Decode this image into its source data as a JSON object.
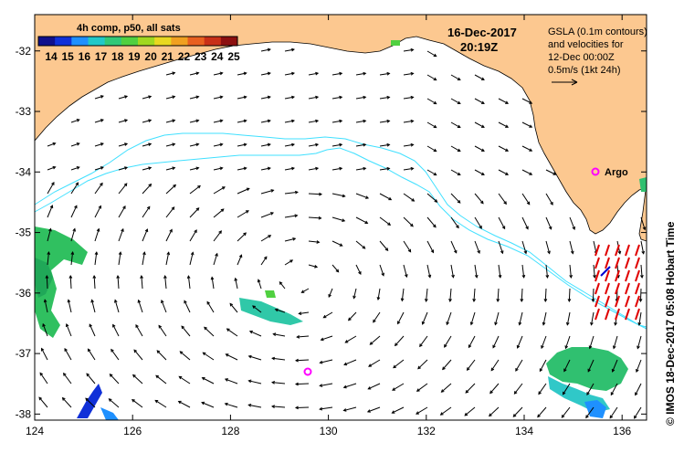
{
  "map": {
    "lon_range": [
      124,
      136.5
    ],
    "lat_range": [
      -38.1,
      -31.4
    ],
    "x_ticks": [
      "124",
      "126",
      "128",
      "130",
      "132",
      "134",
      "136"
    ],
    "x_tick_values": [
      124,
      126,
      128,
      130,
      132,
      134,
      136
    ],
    "y_ticks": [
      "-32",
      "-33",
      "-34",
      "-35",
      "-36",
      "-37",
      "-38"
    ],
    "y_tick_values": [
      -32,
      -33,
      -34,
      -35,
      -36,
      -37,
      -38
    ]
  },
  "colorbar": {
    "title": "4h comp, p50, all sats",
    "labels": [
      "14",
      "15",
      "16",
      "17",
      "18",
      "19",
      "20",
      "21",
      "22",
      "23",
      "24",
      "25"
    ],
    "colors": [
      "#10108c",
      "#1030d8",
      "#1e90ff",
      "#20c8c8",
      "#30c878",
      "#50d040",
      "#a0d820",
      "#e8d820",
      "#f0a020",
      "#e86020",
      "#c83018",
      "#8c1010"
    ]
  },
  "header": {
    "date": "16-Dec-2017",
    "time": "20:19Z"
  },
  "legend": {
    "line1": "GSLA (0.1m contours)",
    "line2": "and velocities for",
    "line3": "12-Dec 00:00Z",
    "line4": "0.5m/s (1kt 24h)"
  },
  "markers": {
    "argo_label": "Argo"
  },
  "credit": "© IMOS 18-Dec-2017 05:08 Hobart Time",
  "colors": {
    "land": "#fcc890",
    "contour": "#40e0ff",
    "argo": "#ff00ff",
    "vector": "#000000"
  }
}
